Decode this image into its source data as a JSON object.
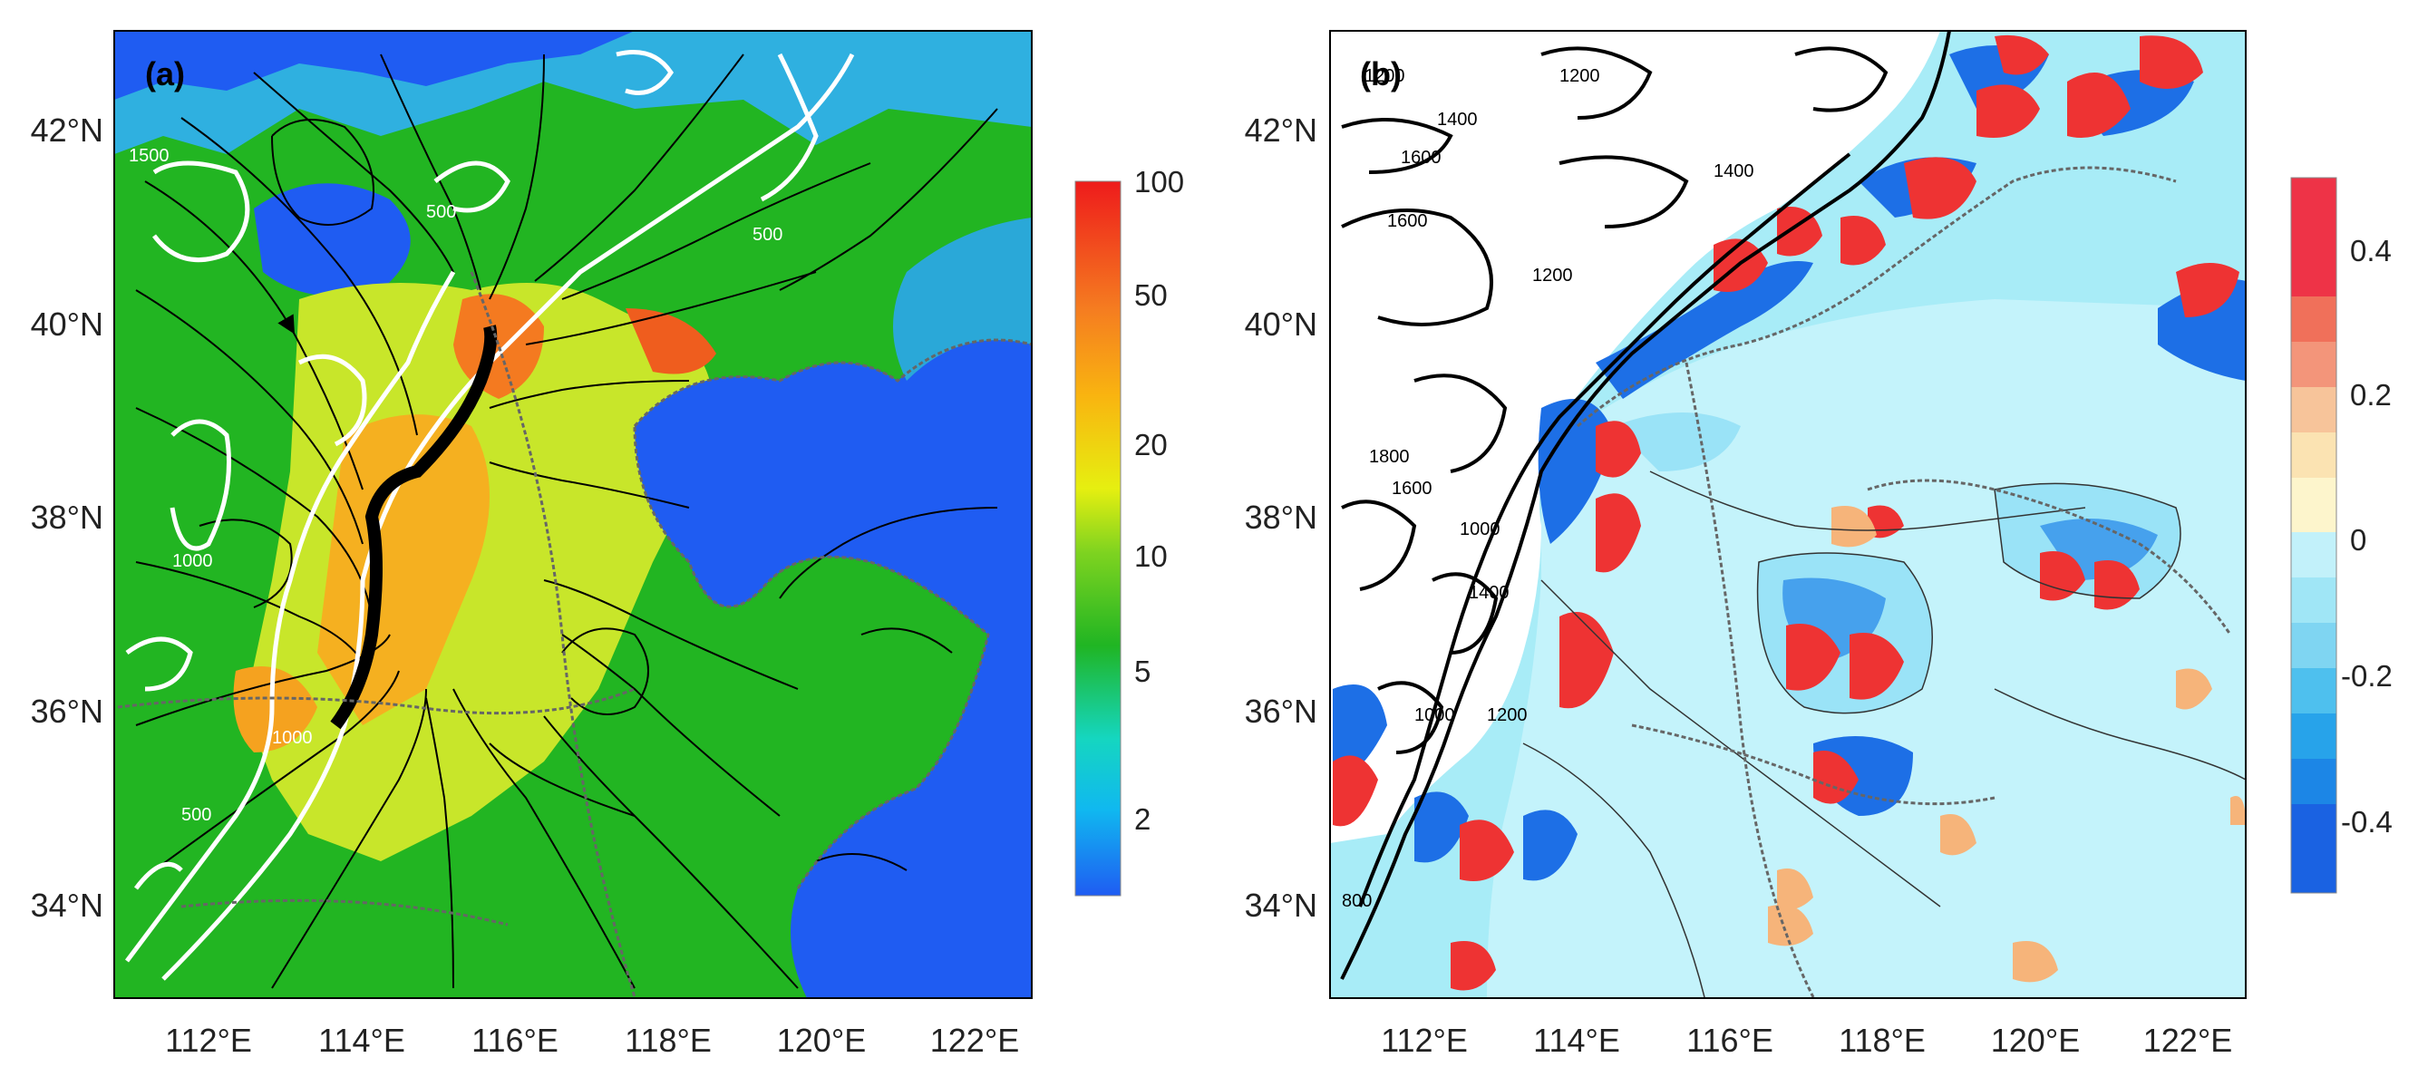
{
  "panel_a": {
    "label": "(a)",
    "colorbar_ticks": [
      "100",
      "50",
      "20",
      "10",
      "5",
      "2"
    ],
    "terrain_contour_labels": [
      "500",
      "1000",
      "1500"
    ]
  },
  "panel_b": {
    "label": "(b)",
    "colorbar_ticks": [
      "0.4",
      "0.2",
      "0",
      "-0.2",
      "-0.4"
    ],
    "terrain_contour_labels": [
      "800",
      "1000",
      "1200",
      "1400",
      "1600",
      "1800"
    ]
  },
  "axes": {
    "lat_ticks": [
      "42°N",
      "40°N",
      "38°N",
      "36°N",
      "34°N"
    ],
    "lon_ticks": [
      "112°E",
      "114°E",
      "116°E",
      "118°E",
      "120°E",
      "122°E"
    ]
  },
  "colors": {
    "sea": "#2d6ef0",
    "land_green": "#22b522",
    "red": "#ee3333",
    "neg_blue": "#1d6fe6",
    "pale_cyan": "#a8ecf7"
  }
}
